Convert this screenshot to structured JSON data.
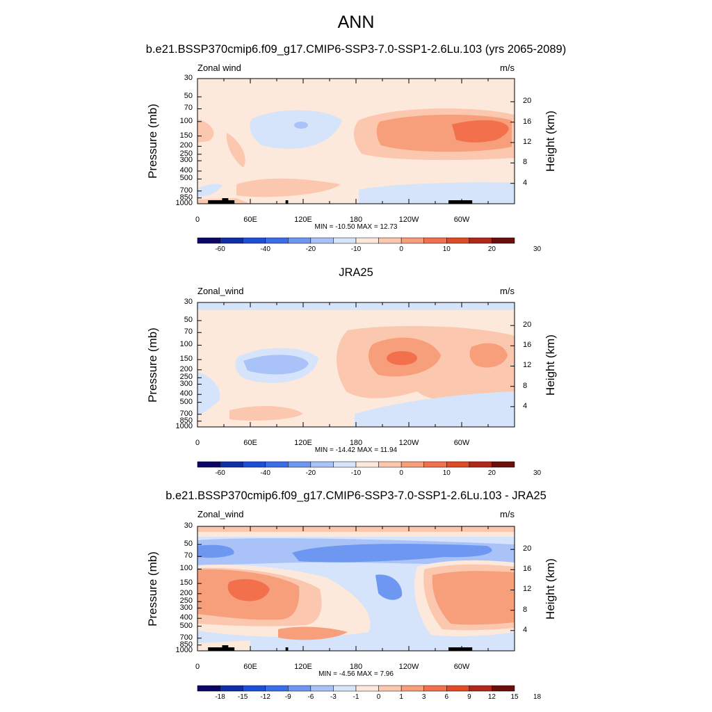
{
  "title": "ANN",
  "colors": {
    "levels_palette": [
      "#0b0566",
      "#0f2fa6",
      "#1d4fd9",
      "#3a6ee8",
      "#6e97f2",
      "#a9c2f7",
      "#d6e4fb",
      "#fde9dc",
      "#fbc7ae",
      "#f79e7b",
      "#f2704c",
      "#e04a24",
      "#b0281a",
      "#6a0f0c"
    ],
    "frame": "#000000",
    "land": "#000000"
  },
  "panels": [
    {
      "title": "b.e21.BSSP370cmip6.f09_g17.CMIP6-SSP3-7.0-SSP1-2.6Lu.103 (yrs 2065-2089)",
      "left_label": "Zonal wind",
      "right_label": "m/s",
      "y_axis_label": "Pressure (mb)",
      "right_axis_label": "Height (km)",
      "y_ticks": [
        "30",
        "50",
        "70",
        "100",
        "150",
        "200",
        "250",
        "300",
        "400",
        "500",
        "700",
        "850",
        "1000"
      ],
      "right_ticks": [
        "20",
        "16",
        "12",
        "8",
        "4"
      ],
      "x_ticks": [
        "0",
        "60E",
        "120E",
        "180",
        "120W",
        "60W"
      ],
      "minmax": "MIN = -10.50  MAX =  12.73",
      "colorbar_labels": [
        "-60",
        "-40",
        "-20",
        "-10",
        "0",
        "10",
        "20",
        "30"
      ]
    },
    {
      "title": "JRA25",
      "left_label": "Zonal_wind",
      "right_label": "m/s",
      "y_axis_label": "Pressure (mb)",
      "right_axis_label": "Height (km)",
      "y_ticks": [
        "30",
        "50",
        "70",
        "100",
        "150",
        "200",
        "250",
        "300",
        "400",
        "500",
        "700",
        "850",
        "1000"
      ],
      "right_ticks": [
        "20",
        "16",
        "12",
        "8",
        "4"
      ],
      "x_ticks": [
        "0",
        "60E",
        "120E",
        "180",
        "120W",
        "60W"
      ],
      "minmax": "MIN = -14.42  MAX =  11.94",
      "colorbar_labels": [
        "-60",
        "-40",
        "-20",
        "-10",
        "0",
        "10",
        "20",
        "30"
      ]
    },
    {
      "title": "b.e21.BSSP370cmip6.f09_g17.CMIP6-SSP3-7.0-SSP1-2.6Lu.103 - JRA25",
      "left_label": "Zonal_wind",
      "right_label": "m/s",
      "y_axis_label": "Pressure (mb)",
      "right_axis_label": "Height (km)",
      "y_ticks": [
        "30",
        "50",
        "70",
        "100",
        "150",
        "200",
        "250",
        "300",
        "400",
        "500",
        "700",
        "850",
        "1000"
      ],
      "right_ticks": [
        "20",
        "16",
        "12",
        "8",
        "4"
      ],
      "x_ticks": [
        "0",
        "60E",
        "120E",
        "180",
        "120W",
        "60W"
      ],
      "minmax": "MIN = -4.56  MAX =  7.96",
      "colorbar_labels": [
        "-18",
        "-15",
        "-12",
        "-9",
        "-6",
        "-3",
        "-1",
        "0",
        "1",
        "3",
        "6",
        "9",
        "12",
        "15",
        "18"
      ]
    }
  ],
  "chart_data": [
    {
      "type": "heatmap",
      "title": "b.e21.BSSP370cmip6.f09_g17.CMIP6-SSP3-7.0-SSP1-2.6Lu.103 (yrs 2065-2089)",
      "xlabel": "",
      "ylabel": "Pressure (mb)",
      "y2label": "Height (km)",
      "x_range_deg": [
        0,
        360
      ],
      "y_range_mb": [
        1000,
        30
      ],
      "y_scale": "log",
      "units": "m/s",
      "min": -10.5,
      "max": 12.73,
      "contour_levels": [
        -60,
        -50,
        -40,
        -30,
        -20,
        -15,
        -10,
        -5,
        0,
        5,
        10,
        15,
        20,
        25,
        30
      ],
      "features": [
        {
          "desc": "westerly maximum over the western hemisphere",
          "lon": 300,
          "pressure": 150,
          "value": 12.7
        },
        {
          "desc": "easterlies near 120E aloft",
          "lon": 100,
          "pressure": 100,
          "value": -5
        }
      ]
    },
    {
      "type": "heatmap",
      "title": "JRA25",
      "xlabel": "",
      "ylabel": "Pressure (mb)",
      "y2label": "Height (km)",
      "x_range_deg": [
        0,
        360
      ],
      "y_range_mb": [
        1000,
        30
      ],
      "y_scale": "log",
      "units": "m/s",
      "min": -14.42,
      "max": 11.94,
      "contour_levels": [
        -60,
        -50,
        -40,
        -30,
        -20,
        -15,
        -10,
        -5,
        0,
        5,
        10,
        15,
        20,
        25,
        30
      ],
      "features": [
        {
          "desc": "westerly jet core near 150W",
          "lon": 220,
          "pressure": 150,
          "value": 11.9
        },
        {
          "desc": "easterlies near 90E aloft",
          "lon": 90,
          "pressure": 150,
          "value": -6
        }
      ]
    },
    {
      "type": "heatmap",
      "title": "b.e21.BSSP370cmip6.f09_g17.CMIP6-SSP3-7.0-SSP1-2.6Lu.103 - JRA25",
      "xlabel": "",
      "ylabel": "Pressure (mb)",
      "y2label": "Height (km)",
      "x_range_deg": [
        0,
        360
      ],
      "y_range_mb": [
        1000,
        30
      ],
      "y_scale": "log",
      "units": "m/s",
      "min": -4.56,
      "max": 7.96,
      "contour_levels": [
        -18,
        -15,
        -12,
        -9,
        -6,
        -3,
        -1,
        0,
        1,
        3,
        6,
        9,
        12,
        15,
        18
      ],
      "features": [
        {
          "desc": "positive difference near 30E",
          "lon": 55,
          "pressure": 200,
          "value": 7.96
        },
        {
          "desc": "negative difference band aloft",
          "lon": 180,
          "pressure": 50,
          "value": -4.5
        }
      ]
    }
  ]
}
